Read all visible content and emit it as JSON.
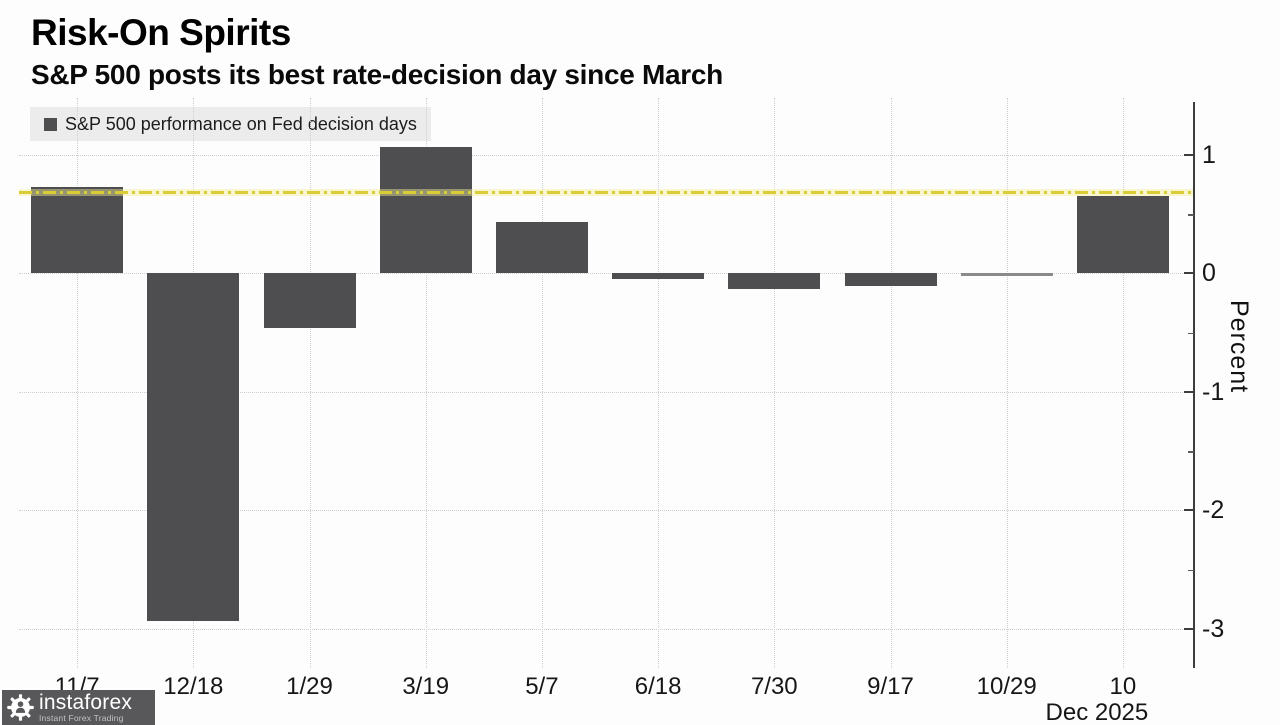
{
  "header": {
    "title": "Risk-On Spirits",
    "subtitle": "S&P 500 posts its best rate-decision day since March"
  },
  "legend": {
    "label": "S&P 500 performance on Fed decision days"
  },
  "watermark": {
    "brand": "instaforex",
    "tagline": "Instant Forex Trading"
  },
  "chart_data": {
    "type": "bar",
    "title": "Risk-On Spirits",
    "subtitle": "S&P 500 posts its best rate-decision day since March",
    "series_name": "S&P 500 performance on Fed decision days",
    "categories": [
      "11/7",
      "12/18",
      "1/29",
      "3/19",
      "5/7",
      "6/18",
      "7/30",
      "9/17",
      "10/29",
      "10"
    ],
    "x_axis_note": "Dec 2025",
    "values": [
      0.73,
      -2.93,
      -0.46,
      1.07,
      0.43,
      -0.05,
      -0.13,
      -0.11,
      -0.01,
      0.65
    ],
    "ylabel": "Percent",
    "y_ticks_major": [
      1,
      0,
      -1,
      -2,
      -3
    ],
    "y_ticks_minor": [
      0.5,
      -0.5,
      -1.5,
      -2.5
    ],
    "ylim": [
      -3.33,
      1.48
    ],
    "reference_line": {
      "value": 0.68,
      "style": "dash-dot",
      "color": "#d8cd36"
    },
    "bar_color": "#4e4e50",
    "near_zero_color": "#8a8a8a",
    "grid": true,
    "legend_position": "top-left",
    "y_axis_side": "right"
  }
}
